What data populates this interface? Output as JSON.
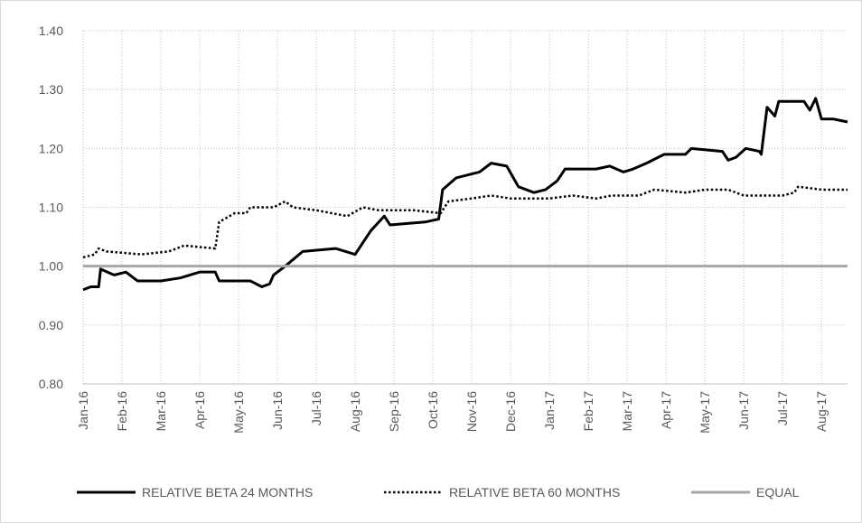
{
  "chart_data": {
    "type": "line",
    "xlim": [
      0,
      19.67
    ],
    "xticks": [
      {
        "value": 0,
        "label": "Jan-16"
      },
      {
        "value": 1,
        "label": "Feb-16"
      },
      {
        "value": 2,
        "label": "Mar-16"
      },
      {
        "value": 3,
        "label": "Apr-16"
      },
      {
        "value": 4,
        "label": "May-16"
      },
      {
        "value": 5,
        "label": "Jun-16"
      },
      {
        "value": 6,
        "label": "Jul-16"
      },
      {
        "value": 7,
        "label": "Aug-16"
      },
      {
        "value": 8,
        "label": "Sep-16"
      },
      {
        "value": 9,
        "label": "Oct-16"
      },
      {
        "value": 10,
        "label": "Nov-16"
      },
      {
        "value": 11,
        "label": "Dec-16"
      },
      {
        "value": 12,
        "label": "Jan-17"
      },
      {
        "value": 13,
        "label": "Feb-17"
      },
      {
        "value": 14,
        "label": "Mar-17"
      },
      {
        "value": 15,
        "label": "Apr-17"
      },
      {
        "value": 16,
        "label": "May-17"
      },
      {
        "value": 17,
        "label": "Jun-17"
      },
      {
        "value": 18,
        "label": "Jul-17"
      },
      {
        "value": 19,
        "label": "Aug-17"
      }
    ],
    "ylim": [
      0.8,
      1.4
    ],
    "yticks": [
      {
        "value": 0.8,
        "label": "0.80"
      },
      {
        "value": 0.9,
        "label": "0.90"
      },
      {
        "value": 1.0,
        "label": "1.00"
      },
      {
        "value": 1.1,
        "label": "1.10"
      },
      {
        "value": 1.2,
        "label": "1.20"
      },
      {
        "value": 1.3,
        "label": "1.30"
      },
      {
        "value": 1.4,
        "label": "1.40"
      }
    ],
    "grid": true,
    "legend": "bottom",
    "series": [
      {
        "name": "RELATIVE BETA 24 MONTHS",
        "color": "#000000",
        "style": "solid",
        "x": [
          0,
          0.2,
          0.4,
          0.45,
          0.8,
          1.1,
          1.4,
          2.0,
          2.5,
          3.0,
          3.4,
          3.5,
          4.0,
          4.3,
          4.6,
          4.8,
          4.9,
          5.2,
          5.65,
          6.5,
          7.0,
          7.4,
          7.75,
          7.9,
          8.8,
          9.15,
          9.25,
          9.6,
          10.2,
          10.5,
          10.9,
          11.2,
          11.6,
          11.9,
          12.2,
          12.4,
          13.2,
          13.55,
          13.9,
          14.15,
          14.5,
          14.95,
          15.5,
          15.65,
          16.45,
          16.6,
          16.8,
          17.05,
          17.4,
          17.45,
          17.6,
          17.8,
          17.9,
          18.55,
          18.7,
          18.85,
          19.0,
          19.3,
          19.67
        ],
        "values": [
          0.96,
          0.965,
          0.965,
          0.995,
          0.985,
          0.99,
          0.975,
          0.975,
          0.98,
          0.99,
          0.99,
          0.975,
          0.975,
          0.975,
          0.965,
          0.97,
          0.985,
          1.0,
          1.025,
          1.03,
          1.02,
          1.06,
          1.085,
          1.07,
          1.075,
          1.08,
          1.13,
          1.15,
          1.16,
          1.175,
          1.17,
          1.135,
          1.125,
          1.13,
          1.145,
          1.165,
          1.165,
          1.17,
          1.16,
          1.165,
          1.175,
          1.19,
          1.19,
          1.2,
          1.195,
          1.18,
          1.185,
          1.2,
          1.195,
          1.19,
          1.27,
          1.255,
          1.28,
          1.28,
          1.265,
          1.285,
          1.25,
          1.25,
          1.245
        ]
      },
      {
        "name": "RELATIVE BETA 60 MONTHS",
        "color": "#000000",
        "style": "dotted",
        "x": [
          0,
          0.3,
          0.4,
          0.6,
          1.5,
          2.2,
          2.6,
          3.4,
          3.5,
          3.9,
          4.2,
          4.3,
          4.9,
          5.2,
          5.4,
          6.0,
          6.8,
          7.2,
          7.6,
          8.5,
          9.2,
          9.4,
          10.0,
          10.5,
          11.0,
          12.0,
          12.6,
          13.2,
          13.6,
          14.3,
          14.7,
          15.5,
          16.0,
          16.6,
          17.0,
          18.0,
          18.3,
          18.4,
          19.0,
          19.67
        ],
        "values": [
          1.015,
          1.02,
          1.03,
          1.025,
          1.02,
          1.025,
          1.035,
          1.03,
          1.075,
          1.09,
          1.09,
          1.1,
          1.1,
          1.11,
          1.1,
          1.095,
          1.085,
          1.1,
          1.095,
          1.095,
          1.09,
          1.11,
          1.115,
          1.12,
          1.115,
          1.115,
          1.12,
          1.115,
          1.12,
          1.12,
          1.13,
          1.125,
          1.13,
          1.13,
          1.12,
          1.12,
          1.125,
          1.135,
          1.13,
          1.13
        ]
      },
      {
        "name": "EQUAL",
        "color": "#a6a6a6",
        "style": "solid",
        "x": [
          0,
          19.67
        ],
        "values": [
          1.0,
          1.0
        ]
      }
    ]
  }
}
